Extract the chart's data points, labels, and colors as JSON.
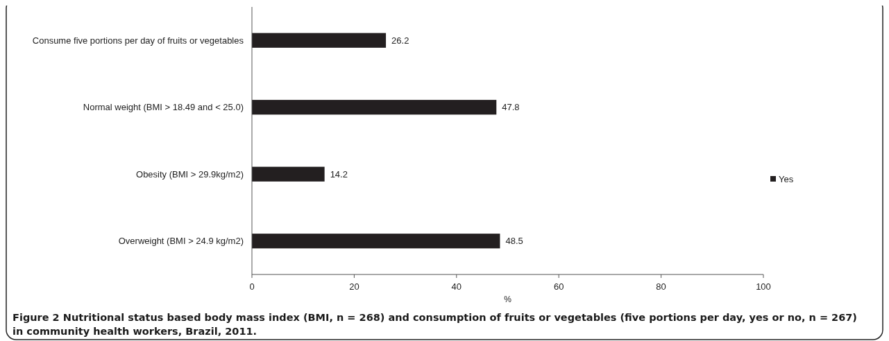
{
  "chart_data": {
    "type": "bar",
    "orientation": "horizontal",
    "categories": [
      "Consume five portions per day of fruits or vegetables",
      "Normal weight (BMI > 18.49 and < 25.0)",
      "Obesity (BMI > 29.9kg/m2)",
      "Overweight (BMI > 24.9 kg/m2)"
    ],
    "series": [
      {
        "name": "Yes",
        "color": "#231f20",
        "values": [
          26.2,
          47.8,
          14.2,
          48.5
        ]
      }
    ],
    "xlim": [
      0,
      100
    ],
    "xticks": [
      0,
      20,
      40,
      60,
      80,
      100
    ],
    "xlabel": "%",
    "data_labels": true,
    "legend": "right",
    "grid": false,
    "annotations": [
      "Figure 2 Nutritional status based body mass index (BMI, n = 268) and consumption of fruits or vegetables (five portions per day, yes or no, n = 267) in community health workers, Brazil, 2011."
    ]
  }
}
